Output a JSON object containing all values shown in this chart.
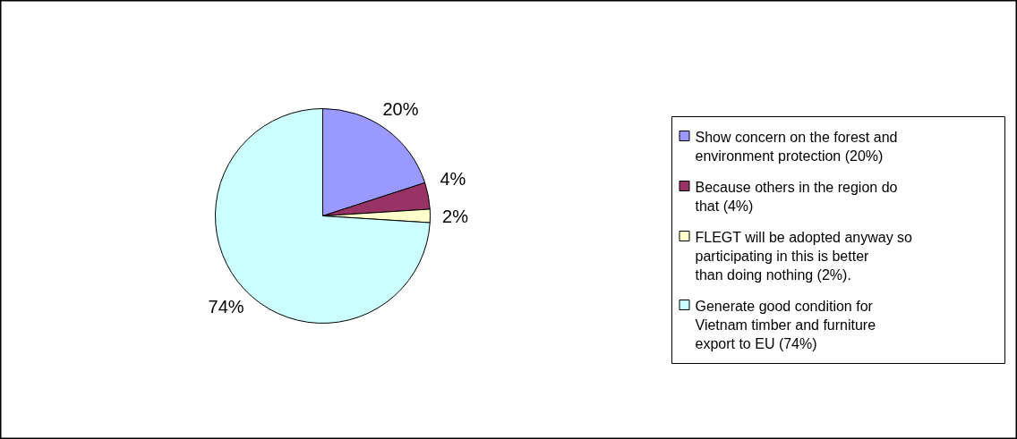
{
  "chart_data": {
    "type": "pie",
    "categories": [
      "Show concern on the forest and environment protection (20%)",
      "Because others in the region do that (4%)",
      "FLEGT will be adopted anyway so participating in this is better than doing nothing (2%).",
      "Generate good condition for Vietnam timber and furniture export to EU (74%)"
    ],
    "values": [
      20,
      4,
      2,
      74
    ],
    "colors": [
      "#9999ff",
      "#993366",
      "#ffffcc",
      "#ccffff"
    ],
    "value_labels": [
      "20%",
      "4%",
      "2%",
      "74%"
    ],
    "legend": "right"
  }
}
